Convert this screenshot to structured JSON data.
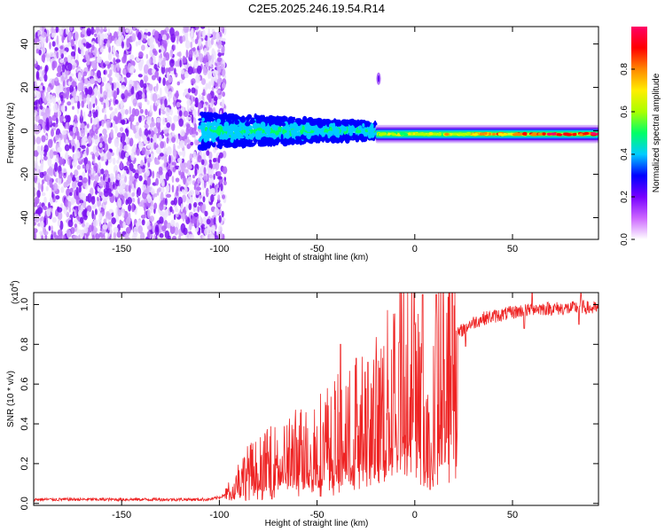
{
  "title": "C2E5.2025.246.19.54.R14",
  "chart_data": [
    {
      "type": "heatmap",
      "name": "spectrogram",
      "xlabel": "Height of straight line (km)",
      "ylabel": "Frequency (Hz)",
      "xlim": [
        -195,
        94
      ],
      "ylim": [
        -50,
        48
      ],
      "xticks": [
        -150,
        -100,
        -50,
        0,
        50
      ],
      "yticks": [
        -40,
        -20,
        0,
        20,
        40
      ],
      "colorbar": {
        "label": "Normalized spectral amplitude",
        "range": [
          0,
          1
        ],
        "ticks": [
          "0.0",
          "0.2",
          "0.4",
          "0.6",
          "0.8"
        ],
        "tick_values": [
          0,
          0.2,
          0.4,
          0.6,
          0.8
        ],
        "colors": [
          "#ffffff",
          "#cc66ff",
          "#7700ff",
          "#0000ff",
          "#00ccff",
          "#00ff66",
          "#aaff00",
          "#ffee00",
          "#ff8800",
          "#ff0000",
          "#ff0066"
        ]
      },
      "regions": [
        {
          "name": "noise",
          "x": [
            -195,
            -97
          ],
          "freq_range": [
            -50,
            48
          ],
          "amplitude": 0.05
        },
        {
          "name": "onset",
          "x": [
            -110,
            -20
          ],
          "freq_center": 0,
          "freq_halfwidth": 8,
          "amplitude": 0.3
        },
        {
          "name": "signal",
          "x": [
            -20,
            94
          ],
          "freq_center": -1.5,
          "freq_halfwidth": 2,
          "amplitude": 0.95
        },
        {
          "name": "blip",
          "x": [
            -19,
            -18
          ],
          "freq_center": 24,
          "freq_halfwidth": 3,
          "amplitude": 0.1
        }
      ]
    },
    {
      "type": "line",
      "name": "snr",
      "xlabel": "Height of straight line (km)",
      "ylabel": "SNR (10 * v/v)",
      "scale_label": "(x10",
      "scale_exp": "4",
      "scale_suffix": ")",
      "xlim": [
        -195,
        94
      ],
      "ylim": [
        -0.01,
        1.06
      ],
      "xticks": [
        -150,
        -100,
        -50,
        0,
        50
      ],
      "yticks": [
        "0.0",
        "0.2",
        "0.4",
        "0.6",
        "0.8",
        "1.0"
      ],
      "ytick_values": [
        0,
        0.2,
        0.4,
        0.6,
        0.8,
        1.0
      ],
      "color": "#ee2222",
      "series": [
        {
          "name": "SNR",
          "x": [
            -195,
            -180,
            -160,
            -140,
            -120,
            -105,
            -100,
            -98,
            -95,
            -93,
            -90,
            -85,
            -80,
            -75,
            -70,
            -65,
            -60,
            -55,
            -50,
            -45,
            -40,
            -35,
            -30,
            -25,
            -20,
            -15,
            -12,
            -10,
            -8,
            -5,
            -3,
            0,
            2,
            4,
            6,
            8,
            10,
            12,
            14,
            16,
            18,
            20,
            22,
            25,
            28,
            30,
            35,
            40,
            45,
            50,
            55,
            58,
            60,
            62,
            65,
            70,
            75,
            80,
            85,
            90,
            94
          ],
          "y": [
            0.02,
            0.02,
            0.02,
            0.02,
            0.02,
            0.02,
            0.03,
            0.04,
            0.06,
            0.1,
            0.12,
            0.16,
            0.18,
            0.2,
            0.22,
            0.24,
            0.26,
            0.28,
            0.3,
            0.32,
            0.34,
            0.36,
            0.38,
            0.42,
            0.45,
            0.5,
            0.55,
            0.6,
            0.7,
            0.75,
            0.72,
            0.68,
            0.55,
            0.45,
            0.35,
            0.22,
            0.5,
            0.65,
            0.7,
            0.72,
            0.76,
            0.8,
            0.85,
            0.88,
            0.9,
            0.91,
            0.93,
            0.94,
            0.95,
            0.96,
            0.97,
            0.97,
            0.98,
            0.98,
            0.98,
            0.98,
            0.98,
            0.98,
            0.99,
            0.98,
            0.98
          ],
          "spike_peaks": [
            {
              "x": -38,
              "y": 0.8
            },
            {
              "x": -30,
              "y": 0.73
            },
            {
              "x": -24,
              "y": 0.71
            },
            {
              "x": -18,
              "y": 0.68
            },
            {
              "x": -8,
              "y": 0.81
            },
            {
              "x": 0,
              "y": 0.9
            },
            {
              "x": 4,
              "y": 1.05
            },
            {
              "x": 11,
              "y": 1.05
            },
            {
              "x": 26,
              "y": 0.79
            },
            {
              "x": 60,
              "y": 1.06
            },
            {
              "x": 85,
              "y": 1.06
            }
          ],
          "spike_dips": [
            {
              "x": 9,
              "y": 0.12
            },
            {
              "x": 56,
              "y": 0.88
            },
            {
              "x": 84,
              "y": 0.9
            }
          ]
        }
      ]
    }
  ]
}
